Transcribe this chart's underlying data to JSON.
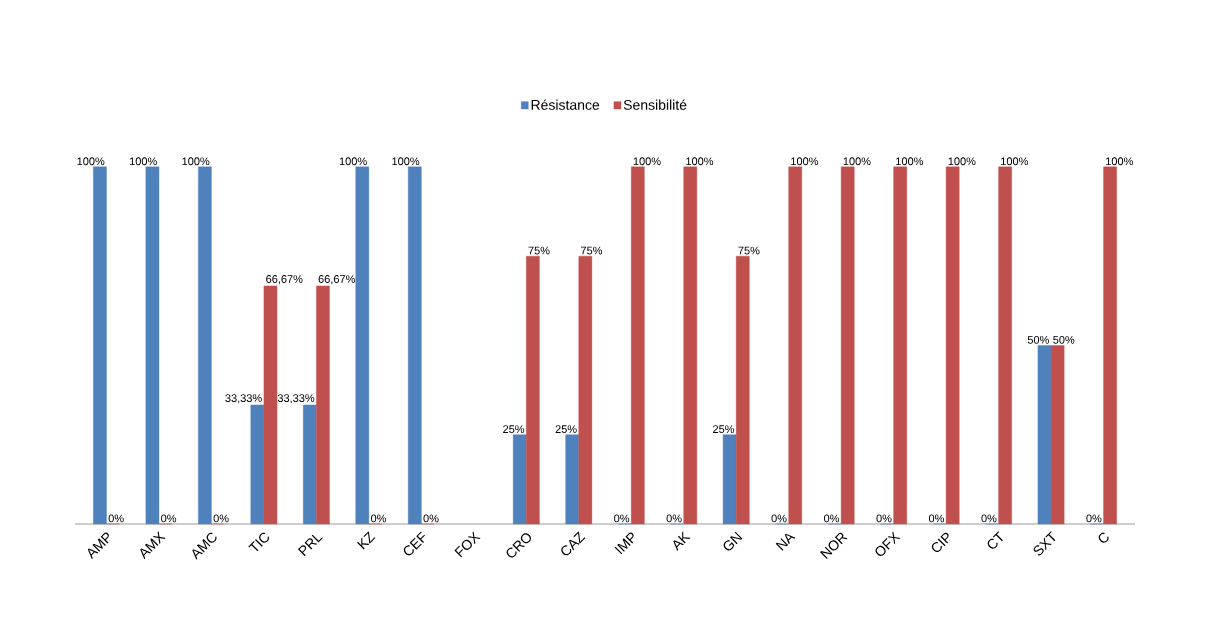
{
  "chart_data": {
    "type": "bar",
    "legend": "top",
    "categories": [
      "AMP",
      "AMX",
      "AMC",
      "TIC",
      "PRL",
      "KZ",
      "CEF",
      "FOX",
      "CRO",
      "CAZ",
      "IMP",
      "AK",
      "GN",
      "NA",
      "NOR",
      "OFX",
      "CIP",
      "CT",
      "SXT",
      "C"
    ],
    "series": [
      {
        "name": "Résistance",
        "color": "#4f81bd",
        "values": [
          100,
          100,
          100,
          33.33,
          33.33,
          100,
          100,
          null,
          25,
          25,
          0,
          0,
          25,
          0,
          0,
          0,
          0,
          0,
          50,
          0
        ],
        "value_labels": [
          "100%",
          "100%",
          "100%",
          "33,33%",
          "33,33%",
          "100%",
          "100%",
          null,
          "25%",
          "25%",
          "0%",
          "0%",
          "25%",
          "0%",
          "0%",
          "0%",
          "0%",
          "0%",
          "50%",
          "0%"
        ]
      },
      {
        "name": "Sensibilité",
        "color": "#c0504d",
        "values": [
          0,
          0,
          0,
          66.67,
          66.67,
          0,
          0,
          null,
          75,
          75,
          100,
          100,
          75,
          100,
          100,
          100,
          100,
          100,
          50,
          100
        ],
        "value_labels": [
          "0%",
          "0%",
          "0%",
          "66,67%",
          "66,67%",
          "0%",
          "0%",
          null,
          "75%",
          "75%",
          "100%",
          "100%",
          "75%",
          "100%",
          "100%",
          "100%",
          "100%",
          "100%",
          "50%",
          "100%"
        ]
      }
    ]
  }
}
